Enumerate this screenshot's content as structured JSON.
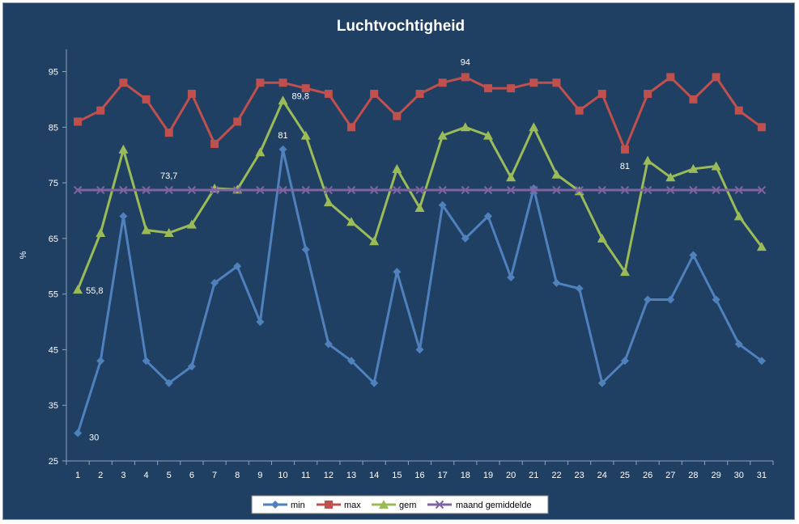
{
  "chart_data": {
    "type": "line",
    "title": "Luchtvochtigheid",
    "xlabel": "",
    "ylabel": "%",
    "ylim": [
      25,
      99
    ],
    "yticks": [
      25,
      35,
      45,
      55,
      65,
      75,
      85,
      95
    ],
    "grid": false,
    "legend": "bottom",
    "x": [
      1,
      2,
      3,
      4,
      5,
      6,
      7,
      8,
      9,
      10,
      11,
      12,
      13,
      14,
      15,
      16,
      17,
      18,
      19,
      20,
      21,
      22,
      23,
      24,
      25,
      26,
      27,
      28,
      29,
      30,
      31
    ],
    "series": [
      {
        "name": "min",
        "color": "#4f81bd",
        "marker": "diamond",
        "values": [
          30,
          43,
          69,
          43,
          39,
          42,
          57,
          60,
          50,
          81,
          63,
          46,
          43,
          39,
          59,
          45,
          71,
          65,
          69,
          58,
          74,
          57,
          56,
          39,
          43,
          54,
          54,
          62,
          54,
          46,
          43
        ]
      },
      {
        "name": "max",
        "color": "#c0504d",
        "marker": "square",
        "values": [
          86,
          88,
          93,
          90,
          84,
          91,
          82,
          86,
          93,
          93,
          92,
          91,
          85,
          91,
          87,
          91,
          93,
          94,
          92,
          92,
          93,
          93,
          88,
          91,
          81,
          91,
          94,
          90,
          94,
          88,
          85
        ]
      },
      {
        "name": "gem",
        "color": "#9bbb59",
        "marker": "triangle",
        "values": [
          55.8,
          66,
          81,
          66.5,
          66,
          67.5,
          74,
          73.8,
          80.5,
          89.8,
          83.5,
          71.5,
          68,
          64.5,
          77.5,
          70.5,
          83.5,
          85,
          83.5,
          76,
          85,
          76.5,
          73.5,
          65,
          59,
          79,
          76,
          77.5,
          78,
          69,
          63.5
        ]
      },
      {
        "name": "maand gemiddelde",
        "color": "#8064a2",
        "marker": "x",
        "values": [
          73.7,
          73.7,
          73.7,
          73.7,
          73.7,
          73.7,
          73.7,
          73.7,
          73.7,
          73.7,
          73.7,
          73.7,
          73.7,
          73.7,
          73.7,
          73.7,
          73.7,
          73.7,
          73.7,
          73.7,
          73.7,
          73.7,
          73.7,
          73.7,
          73.7,
          73.7,
          73.7,
          73.7,
          73.7,
          73.7,
          73.7
        ]
      }
    ],
    "annotations": [
      {
        "series": "min",
        "x": 1,
        "text": "30"
      },
      {
        "series": "min",
        "x": 10,
        "text": "81"
      },
      {
        "series": "gem",
        "x": 1,
        "text": "55,8"
      },
      {
        "series": "gem",
        "x": 10,
        "text": "89,8"
      },
      {
        "series": "maand gemiddelde",
        "x": 5,
        "text": "73,7"
      },
      {
        "series": "max",
        "x": 18,
        "text": "94"
      },
      {
        "series": "max",
        "x": 25,
        "text": "81"
      }
    ]
  }
}
